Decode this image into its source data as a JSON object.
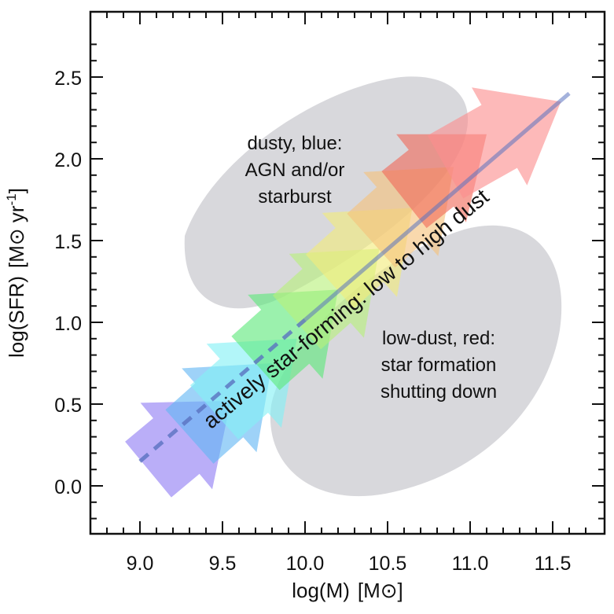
{
  "chart_data": {
    "type": "diagram",
    "xlabel_main": "log(M)",
    "xlabel_unit": "[M⊙]",
    "ylabel_main": "log(SFR)",
    "ylabel_unit": "[M⊙ yr",
    "ylabel_exp": "-1",
    "ylabel_close": "]",
    "xlim": [
      8.75,
      11.75
    ],
    "ylim": [
      -0.28,
      2.8
    ],
    "xticks": [
      9.0,
      9.5,
      10.0,
      10.5,
      11.0,
      11.5
    ],
    "xtick_labels": [
      "9.0",
      "9.5",
      "10.0",
      "10.5",
      "11.0",
      "11.5"
    ],
    "yticks": [
      0.0,
      0.5,
      1.0,
      1.5,
      2.0,
      2.5
    ],
    "ytick_labels": [
      "0.0",
      "0.5",
      "1.0",
      "1.5",
      "2.0",
      "2.5"
    ],
    "regions": [
      {
        "name": "dusty-blue",
        "lines": [
          "dusty, blue:",
          "AGN and/or",
          "starburst"
        ],
        "color": "#d8d8dc"
      },
      {
        "name": "low-dust-red",
        "lines": [
          "low-dust, red:",
          "star formation",
          "shutting down"
        ],
        "color": "#d8d8dc"
      }
    ],
    "trend_label": "actively star-forming: low to high dust",
    "arrows": [
      {
        "color": "#8f7cf3",
        "x0": 9.05,
        "y0": 0.1,
        "x1": 9.55,
        "y1": 0.52
      },
      {
        "color": "#63b7f4",
        "x0": 9.3,
        "y0": 0.3,
        "x1": 9.8,
        "y1": 0.75
      },
      {
        "color": "#82f0f5",
        "x0": 9.45,
        "y0": 0.45,
        "x1": 9.95,
        "y1": 0.9
      },
      {
        "color": "#5de87a",
        "x0": 9.7,
        "y0": 0.75,
        "x1": 10.2,
        "y1": 1.2
      },
      {
        "color": "#b8f07a",
        "x0": 9.95,
        "y0": 1.0,
        "x1": 10.45,
        "y1": 1.45
      },
      {
        "color": "#f2ec7a",
        "x0": 10.15,
        "y0": 1.25,
        "x1": 10.65,
        "y1": 1.7
      },
      {
        "color": "#f6c27a",
        "x0": 10.4,
        "y0": 1.5,
        "x1": 10.9,
        "y1": 1.95
      },
      {
        "color": "#f06a5a",
        "x0": 10.6,
        "y0": 1.75,
        "x1": 11.1,
        "y1": 2.15
      },
      {
        "color": "#fb8e8e",
        "x0": 10.85,
        "y0": 1.95,
        "x1": 11.55,
        "y1": 2.35
      }
    ],
    "trend_line": {
      "x": [
        9.0,
        11.6
      ],
      "y": [
        0.15,
        2.4
      ],
      "solid_from_x": 10.0,
      "color": "#5a72c0"
    },
    "grid": false
  }
}
